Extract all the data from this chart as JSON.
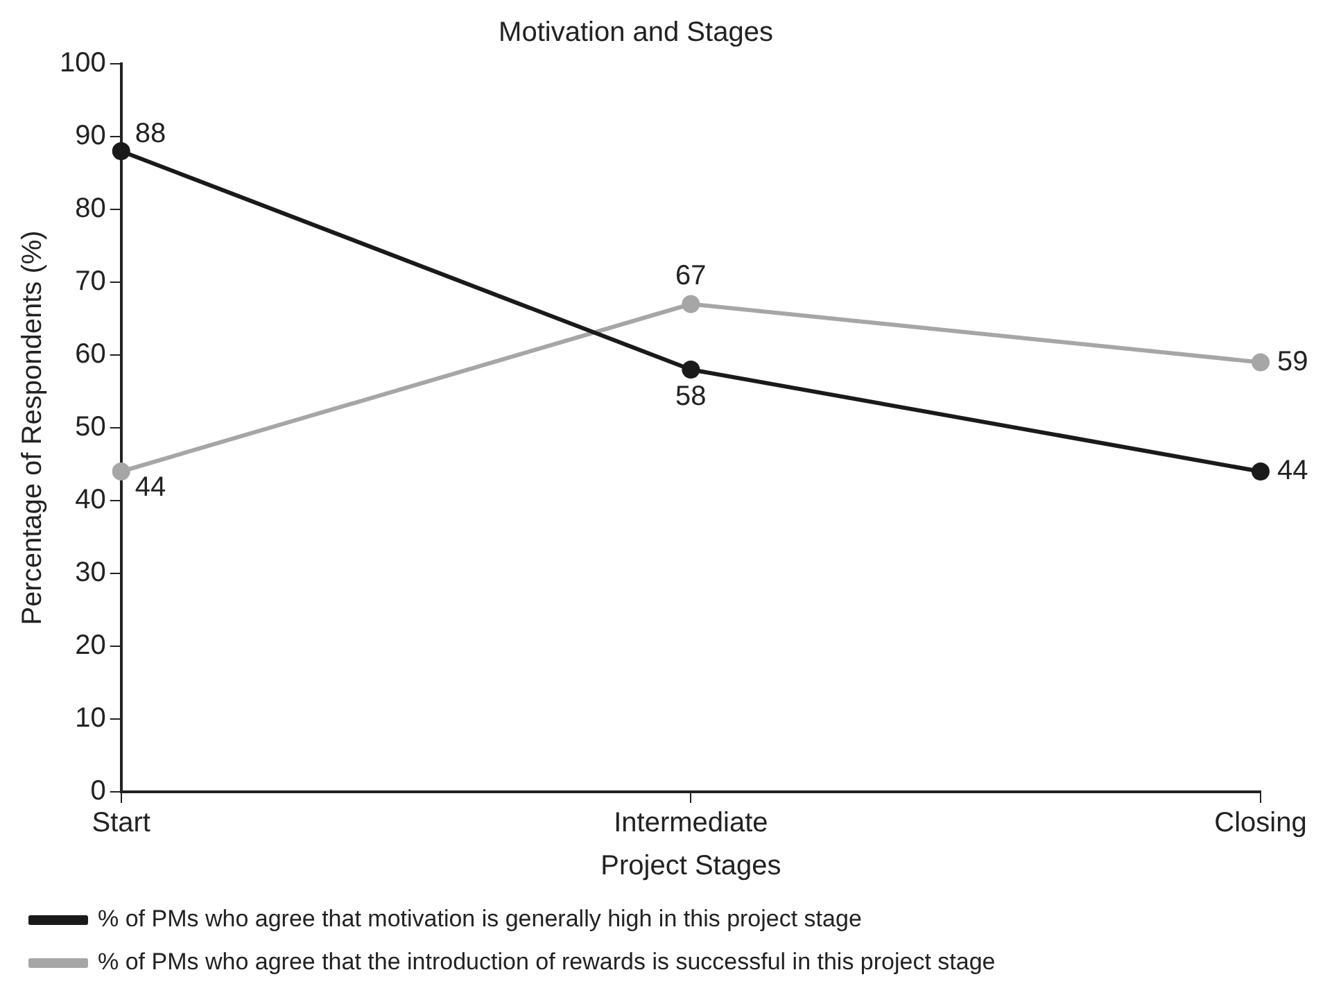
{
  "chart_data": {
    "type": "line",
    "title": "Motivation and Stages",
    "xlabel": "Project Stages",
    "ylabel": "Percentage of Respondents (%)",
    "categories": [
      "Start",
      "Intermediate",
      "Closing"
    ],
    "series": [
      {
        "name": "% of PMs who agree that motivation is generally high in this project stage",
        "color": "#1a1a1a",
        "values": [
          88,
          58,
          44
        ]
      },
      {
        "name": "% of PMs who agree that the introduction of rewards is successful in this project stage",
        "color": "#a6a6a6",
        "values": [
          44,
          67,
          59
        ]
      }
    ],
    "ylim": [
      0,
      100
    ],
    "yticks": [
      0,
      10,
      20,
      30,
      40,
      50,
      60,
      70,
      80,
      90,
      100
    ],
    "grid": false,
    "legend": "bottom",
    "marker": "circle",
    "line_style": "solid",
    "data_labels": true
  }
}
